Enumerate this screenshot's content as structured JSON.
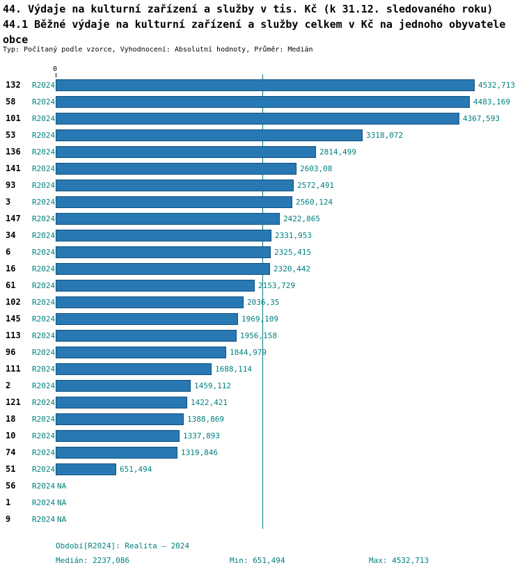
{
  "header": {
    "title_line1": "44. Výdaje na kulturní zařízení a služby v tis. Kč (k 31.12. sledovaného roku)",
    "title_line2": "44.1 Běžné výdaje na kulturní zařízení a služby celkem v Kč na jednoho obyvatele obce",
    "subtitle": "Typ: Počítaný podle vzorce, Vyhodnocení: Absolutní hodnoty, Průměr: Medián"
  },
  "axis": {
    "origin_label": "0"
  },
  "chart_data": {
    "type": "bar",
    "orientation": "horizontal",
    "period_label": "R2024",
    "max_value": 4532.713,
    "median_value": 2237.086,
    "xlim": [
      0,
      4532.713
    ],
    "grid": false,
    "rows": [
      {
        "category": "132",
        "period": "R2024",
        "value": 4532.713,
        "value_label": "4532,713"
      },
      {
        "category": "58",
        "period": "R2024",
        "value": 4483.169,
        "value_label": "4483,169"
      },
      {
        "category": "101",
        "period": "R2024",
        "value": 4367.593,
        "value_label": "4367,593"
      },
      {
        "category": "53",
        "period": "R2024",
        "value": 3318.072,
        "value_label": "3318,072"
      },
      {
        "category": "136",
        "period": "R2024",
        "value": 2814.499,
        "value_label": "2814,499"
      },
      {
        "category": "141",
        "period": "R2024",
        "value": 2603.08,
        "value_label": "2603,08"
      },
      {
        "category": "93",
        "period": "R2024",
        "value": 2572.491,
        "value_label": "2572,491"
      },
      {
        "category": "3",
        "period": "R2024",
        "value": 2560.124,
        "value_label": "2560,124"
      },
      {
        "category": "147",
        "period": "R2024",
        "value": 2422.865,
        "value_label": "2422,865"
      },
      {
        "category": "34",
        "period": "R2024",
        "value": 2331.953,
        "value_label": "2331,953"
      },
      {
        "category": "6",
        "period": "R2024",
        "value": 2325.415,
        "value_label": "2325,415"
      },
      {
        "category": "16",
        "period": "R2024",
        "value": 2320.442,
        "value_label": "2320,442"
      },
      {
        "category": "61",
        "period": "R2024",
        "value": 2153.729,
        "value_label": "2153,729"
      },
      {
        "category": "102",
        "period": "R2024",
        "value": 2036.35,
        "value_label": "2036,35"
      },
      {
        "category": "145",
        "period": "R2024",
        "value": 1969.109,
        "value_label": "1969,109"
      },
      {
        "category": "113",
        "period": "R2024",
        "value": 1956.158,
        "value_label": "1956,158"
      },
      {
        "category": "96",
        "period": "R2024",
        "value": 1844.979,
        "value_label": "1844,979"
      },
      {
        "category": "111",
        "period": "R2024",
        "value": 1688.114,
        "value_label": "1688,114"
      },
      {
        "category": "2",
        "period": "R2024",
        "value": 1459.112,
        "value_label": "1459,112"
      },
      {
        "category": "121",
        "period": "R2024",
        "value": 1422.421,
        "value_label": "1422,421"
      },
      {
        "category": "18",
        "period": "R2024",
        "value": 1388.869,
        "value_label": "1388,869"
      },
      {
        "category": "10",
        "period": "R2024",
        "value": 1337.893,
        "value_label": "1337,893"
      },
      {
        "category": "74",
        "period": "R2024",
        "value": 1319.846,
        "value_label": "1319,846"
      },
      {
        "category": "51",
        "period": "R2024",
        "value": 651.494,
        "value_label": "651,494"
      },
      {
        "category": "56",
        "period": "R2024",
        "value": null,
        "value_label": "NA"
      },
      {
        "category": "1",
        "period": "R2024",
        "value": null,
        "value_label": "NA"
      },
      {
        "category": "9",
        "period": "R2024",
        "value": null,
        "value_label": "NA"
      }
    ]
  },
  "footer": {
    "period": "Období[R2024]: Realita – 2024",
    "median": "Medián: 2237,086",
    "min": "Min: 651,494",
    "max": "Max: 4532,713"
  },
  "colors": {
    "teal": "#008080",
    "bar_fill": "#2878b4",
    "bar_border": "#10527e"
  }
}
